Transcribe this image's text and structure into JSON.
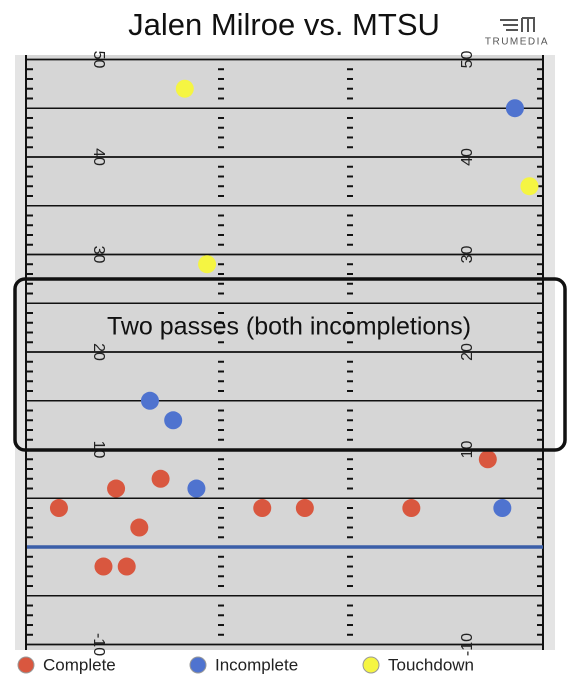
{
  "chart_data": {
    "type": "scatter",
    "title": "Jalen Milroe vs. MTSU",
    "logo": "TRUMEDIA",
    "xlim": [
      0,
      53.3
    ],
    "ylim": [
      -10.5,
      50.5
    ],
    "yticks": [
      -10,
      10,
      20,
      30,
      40,
      50
    ],
    "line_of_scrimmage": 0,
    "annotation": "Two passes (both incompletions)",
    "series": [
      {
        "name": "Complete",
        "color": "#d9573f",
        "x": [
          3.3,
          9.2,
          13.8,
          11.6,
          24.3,
          28.7,
          39.7,
          47.6,
          7.9,
          10.3
        ],
        "values": [
          4,
          6,
          7,
          2,
          4,
          4,
          4,
          9,
          -2,
          -2
        ]
      },
      {
        "name": "Incomplete",
        "color": "#4f73cf",
        "x": [
          50.4,
          12.7,
          15.1,
          17.5,
          49.1
        ],
        "values": [
          45,
          15,
          13,
          6,
          4
        ]
      },
      {
        "name": "Touchdown",
        "color": "#f5f542",
        "x": [
          16.3,
          18.6,
          51.9
        ],
        "values": [
          47,
          29,
          37
        ]
      }
    ]
  }
}
